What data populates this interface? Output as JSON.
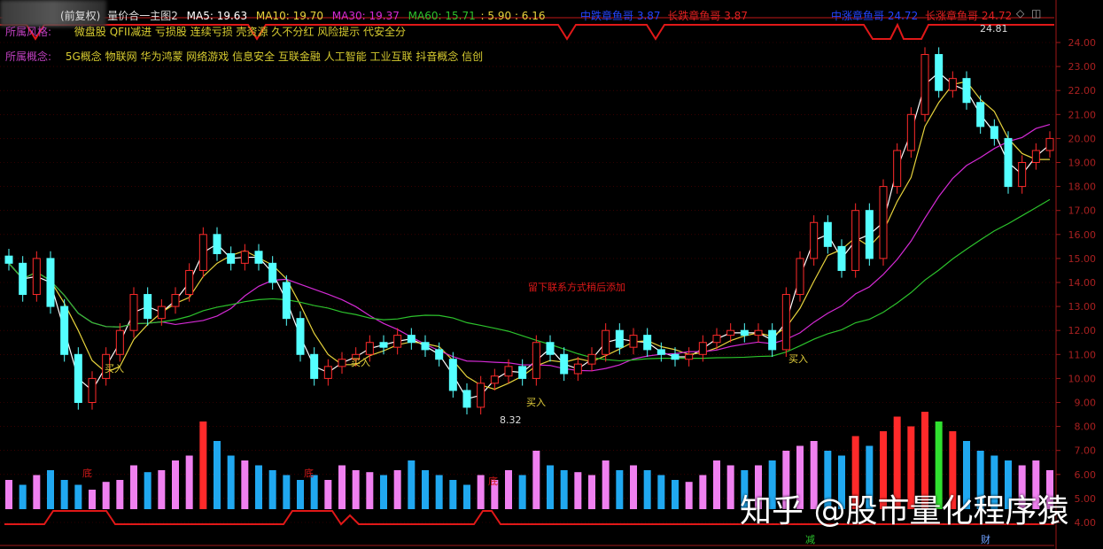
{
  "header": {
    "fq": "(前复权)",
    "indicator": "量价合一主图2",
    "ma5": "MA5: 19.63",
    "ma10": "MA10: 19.70",
    "ma30": "MA30: 19.37",
    "ma60": "MA60: 15.71",
    "extra": ": 5.90 : 6.16",
    "mid_down_label": "中跌章鱼哥",
    "mid_down_val": "3.87",
    "long_down_label": "长跌章鱼哥",
    "long_down_val": "3.87",
    "mid_up_label": "中涨章鱼哥",
    "mid_up_val": "24.72",
    "long_up_label": "长涨章鱼哥",
    "long_up_val": "24.72"
  },
  "style_row": {
    "label": "所属风格:",
    "text": "微盘股 QFII减进 亏损股 连续亏损 壳资源 久不分红 风险提示 代安全分"
  },
  "concept_row": {
    "label": "所属概念:",
    "text": "5G概念 物联网 华为鸿蒙 网络游戏 信息安全 互联金融 人工智能 工业互联 抖音概念 信创"
  },
  "annotations": {
    "note": "留下联系方式稍后添加",
    "high": "24.81",
    "low": "8.32",
    "buy": "买入",
    "bottom": "底",
    "jian": "减",
    "cai": "财"
  },
  "watermark": "知乎 @股市量化程序猿",
  "colors": {
    "up": "#ff2a2a",
    "down": "#54ffff",
    "ma5": "#ffffff",
    "ma10": "#e6d23c",
    "ma30": "#d42ad4",
    "ma60": "#2cc22c",
    "axis": "#a01818",
    "grid": "#5a0000"
  },
  "chart_data": {
    "type": "candlestick",
    "yaxis": {
      "ticks": [
        "24.00",
        "23.00",
        "22.00",
        "21.00",
        "20.00",
        "19.00",
        "18.00",
        "17.00",
        "16.00",
        "15.00",
        "14.00",
        "13.00",
        "12.00",
        "11.00",
        "10.00",
        "9.00",
        "8.00",
        "7.00",
        "6.00",
        "5.00",
        "4.00"
      ],
      "range": [
        4,
        24
      ]
    },
    "close": [
      14.8,
      13.5,
      15.0,
      13.0,
      11.0,
      9.0,
      10.0,
      11.0,
      12.0,
      13.5,
      12.5,
      13.0,
      13.5,
      14.5,
      16.0,
      15.2,
      14.8,
      15.3,
      14.8,
      14.0,
      12.5,
      11.0,
      10.0,
      10.5,
      10.8,
      11.0,
      11.5,
      11.3,
      11.8,
      11.5,
      11.2,
      10.8,
      9.5,
      8.8,
      9.8,
      10.1,
      10.5,
      10.0,
      11.5,
      11.0,
      10.2,
      10.6,
      11.0,
      12.0,
      11.3,
      11.8,
      11.2,
      11.0,
      10.8,
      11.0,
      11.5,
      11.8,
      12.0,
      11.8,
      12.0,
      11.2,
      13.5,
      15.0,
      16.5,
      15.5,
      14.5,
      17.0,
      15.0,
      18.0,
      19.5,
      21.0,
      23.5,
      22.0,
      22.5,
      21.5,
      20.5,
      20.0,
      18.0,
      19.0,
      19.5,
      20.0
    ],
    "volume": [
      30,
      25,
      35,
      40,
      30,
      25,
      20,
      28,
      30,
      45,
      38,
      40,
      50,
      55,
      90,
      70,
      55,
      50,
      45,
      40,
      35,
      30,
      35,
      30,
      45,
      40,
      38,
      35,
      40,
      50,
      40,
      35,
      30,
      25,
      35,
      30,
      40,
      35,
      60,
      45,
      40,
      38,
      35,
      50,
      40,
      45,
      40,
      35,
      30,
      28,
      35,
      50,
      45,
      40,
      45,
      50,
      60,
      65,
      70,
      60,
      55,
      75,
      65,
      80,
      95,
      85,
      100,
      90,
      80,
      70,
      60,
      55,
      50,
      45,
      50,
      40
    ],
    "ma_series": [
      "MA5",
      "MA10",
      "MA30",
      "MA60"
    ]
  }
}
